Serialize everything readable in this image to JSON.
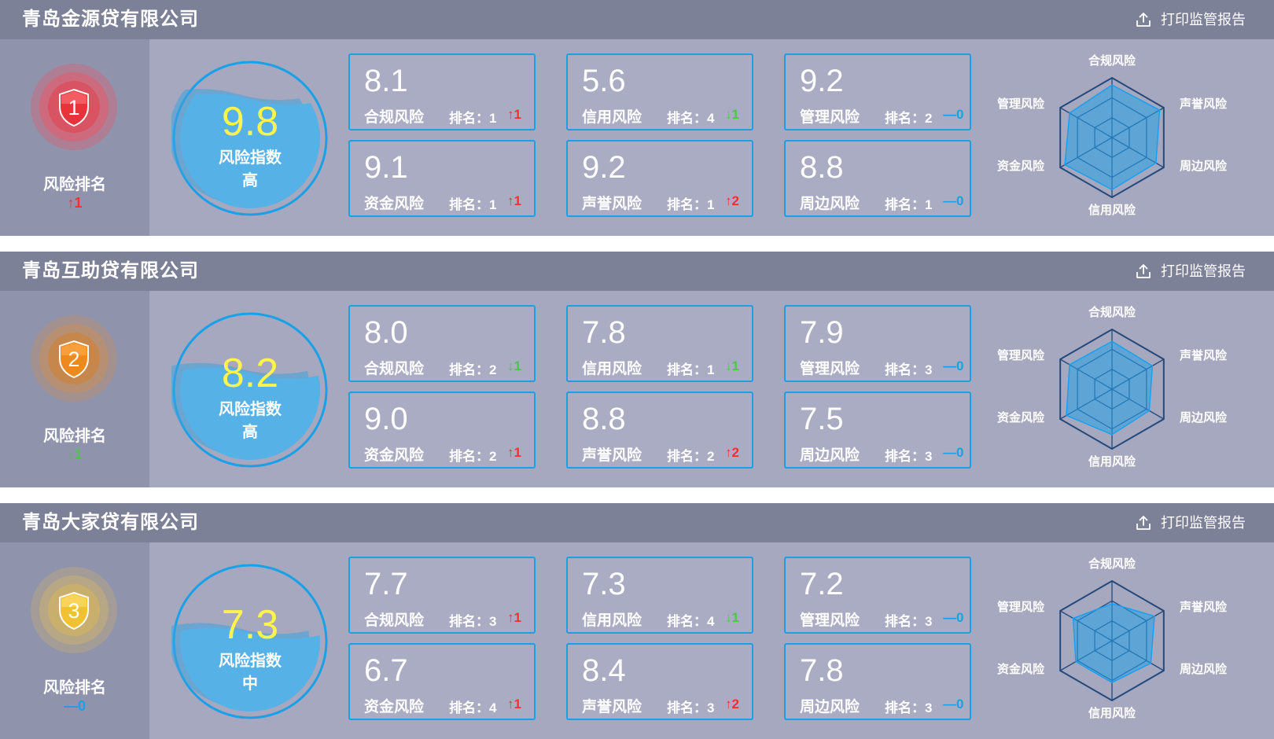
{
  "app": {
    "print_label": "打印监管报告",
    "rank_label": "风险排名",
    "index_label": "风险指数",
    "rank_prefix": "排名："
  },
  "colors": {
    "header": "#7d8197",
    "panel": "#a5a8bf",
    "accent": "#1aa0e6",
    "up": "#ff2e2e",
    "down": "#4ec44e",
    "gauge_value": "#fff34d"
  },
  "radar_labels": [
    "合规风险",
    "声誉风险",
    "周边风险",
    "信用风险",
    "资金风险",
    "管理风险"
  ],
  "companies": [
    {
      "name": "青岛金源贷有限公司",
      "rank": "1",
      "medal_color": "red",
      "rank_change": {
        "arrow": "↑",
        "value": "1",
        "dir": "up"
      },
      "index": {
        "value": "9.8",
        "level": "高",
        "fill": 0.78
      },
      "radar": {
        "values": [
          0.88,
          0.92,
          0.85,
          0.87,
          0.91,
          0.82
        ]
      },
      "metrics": [
        {
          "value": "8.1",
          "name": "合规风险",
          "rank": "1",
          "arrow": "↑",
          "delta": "1",
          "dir": "up"
        },
        {
          "value": "5.6",
          "name": "信用风险",
          "rank": "4",
          "arrow": "↓",
          "delta": "1",
          "dir": "down"
        },
        {
          "value": "9.2",
          "name": "管理风险",
          "rank": "2",
          "arrow": "—",
          "delta": "0",
          "dir": "same"
        },
        {
          "value": "9.1",
          "name": "资金风险",
          "rank": "1",
          "arrow": "↑",
          "delta": "1",
          "dir": "up"
        },
        {
          "value": "9.2",
          "name": "声誉风险",
          "rank": "1",
          "arrow": "↑",
          "delta": "2",
          "dir": "up"
        },
        {
          "value": "8.8",
          "name": "周边风险",
          "rank": "1",
          "arrow": "—",
          "delta": "0",
          "dir": "same"
        }
      ]
    },
    {
      "name": "青岛互助贷有限公司",
      "rank": "2",
      "medal_color": "orange",
      "rank_change": {
        "arrow": "↓",
        "value": "1",
        "dir": "down"
      },
      "index": {
        "value": "8.2",
        "level": "高",
        "fill": 0.62
      },
      "radar": {
        "values": [
          0.8,
          0.78,
          0.72,
          0.76,
          0.88,
          0.82
        ]
      },
      "metrics": [
        {
          "value": "8.0",
          "name": "合规风险",
          "rank": "2",
          "arrow": "↓",
          "delta": "1",
          "dir": "down"
        },
        {
          "value": "7.8",
          "name": "信用风险",
          "rank": "1",
          "arrow": "↓",
          "delta": "1",
          "dir": "down"
        },
        {
          "value": "7.9",
          "name": "管理风险",
          "rank": "3",
          "arrow": "—",
          "delta": "0",
          "dir": "same"
        },
        {
          "value": "9.0",
          "name": "资金风险",
          "rank": "2",
          "arrow": "↑",
          "delta": "1",
          "dir": "up"
        },
        {
          "value": "8.8",
          "name": "声誉风险",
          "rank": "2",
          "arrow": "↑",
          "delta": "2",
          "dir": "up"
        },
        {
          "value": "7.5",
          "name": "周边风险",
          "rank": "3",
          "arrow": "—",
          "delta": "0",
          "dir": "same"
        }
      ]
    },
    {
      "name": "青岛大家贷有限公司",
      "rank": "3",
      "medal_color": "yellow",
      "rank_change": {
        "arrow": "—",
        "value": "0",
        "dir": "same"
      },
      "index": {
        "value": "7.3",
        "level": "中",
        "fill": 0.56
      },
      "radar": {
        "values": [
          0.62,
          0.82,
          0.75,
          0.7,
          0.7,
          0.75
        ]
      },
      "metrics": [
        {
          "value": "7.7",
          "name": "合规风险",
          "rank": "3",
          "arrow": "↑",
          "delta": "1",
          "dir": "up"
        },
        {
          "value": "7.3",
          "name": "信用风险",
          "rank": "4",
          "arrow": "↓",
          "delta": "1",
          "dir": "down"
        },
        {
          "value": "7.2",
          "name": "管理风险",
          "rank": "3",
          "arrow": "—",
          "delta": "0",
          "dir": "same"
        },
        {
          "value": "6.7",
          "name": "资金风险",
          "rank": "4",
          "arrow": "↑",
          "delta": "1",
          "dir": "up"
        },
        {
          "value": "8.4",
          "name": "声誉风险",
          "rank": "3",
          "arrow": "↑",
          "delta": "2",
          "dir": "up"
        },
        {
          "value": "7.8",
          "name": "周边风险",
          "rank": "3",
          "arrow": "—",
          "delta": "0",
          "dir": "same"
        }
      ]
    }
  ]
}
